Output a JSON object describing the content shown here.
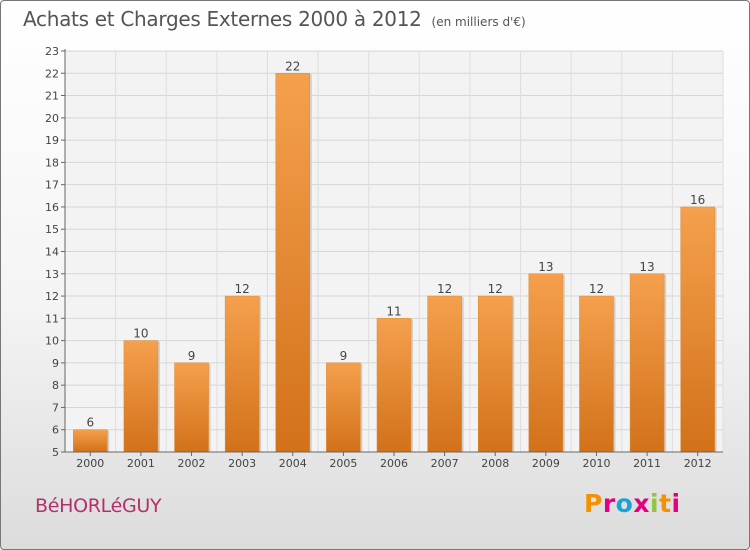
{
  "header": {
    "title": "Achats et Charges Externes 2000 à 2012",
    "unit": "(en milliers d'€)"
  },
  "footer": {
    "commune": "BéHORLéGUY",
    "brand": "Proxiti",
    "brand_colors": [
      "#f39200",
      "#e5007e",
      "#1aa3d9",
      "#e5007e",
      "#8dc63f",
      "#f39200",
      "#e5007e"
    ]
  },
  "chart_data": {
    "type": "bar",
    "title": "Achats et Charges Externes 2000 à 2012",
    "subtitle": "(en milliers d'€)",
    "xlabel": "",
    "ylabel": "",
    "categories": [
      "2000",
      "2001",
      "2002",
      "2003",
      "2004",
      "2005",
      "2006",
      "2007",
      "2008",
      "2009",
      "2010",
      "2011",
      "2012"
    ],
    "values": [
      6,
      10,
      9,
      12,
      22,
      9,
      11,
      12,
      12,
      13,
      12,
      13,
      16
    ],
    "ylim": [
      5,
      23
    ],
    "yticks": [
      5,
      6,
      7,
      8,
      9,
      10,
      11,
      12,
      13,
      14,
      15,
      16,
      17,
      18,
      19,
      20,
      21,
      22,
      23
    ],
    "grid": "horizontal",
    "bar_color_top": "#f5a04d",
    "bar_color_bottom": "#d2711a",
    "show_values": true
  }
}
